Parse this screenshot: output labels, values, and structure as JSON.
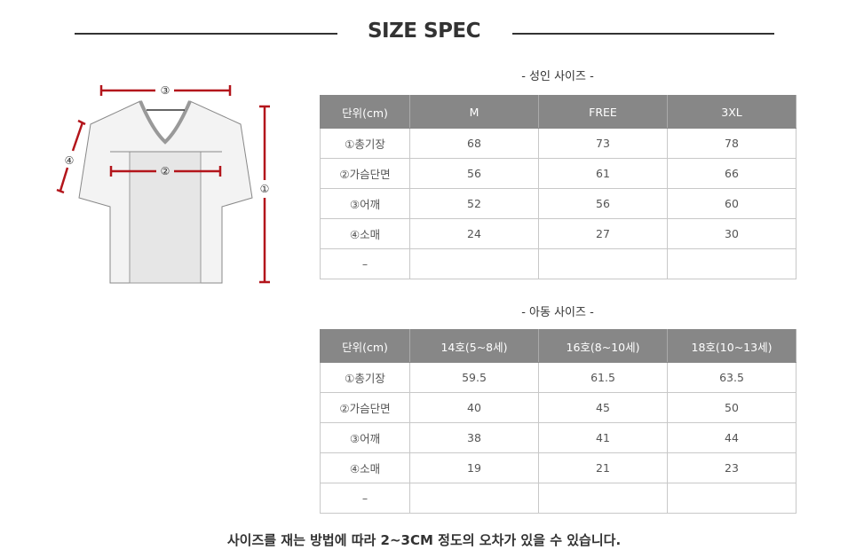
{
  "title": "SIZE SPEC",
  "adult": {
    "subtitle": "- 성인 사이즈 -",
    "headers": [
      "단위(cm)",
      "M",
      "FREE",
      "3XL"
    ],
    "rows": [
      [
        "①총기장",
        "68",
        "73",
        "78"
      ],
      [
        "②가슴단면",
        "56",
        "61",
        "66"
      ],
      [
        "③어깨",
        "52",
        "56",
        "60"
      ],
      [
        "④소매",
        "24",
        "27",
        "30"
      ],
      [
        "–",
        "",
        "",
        ""
      ]
    ]
  },
  "kids": {
    "subtitle": "- 아동 사이즈 -",
    "headers": [
      "단위(cm)",
      "14호(5~8세)",
      "16호(8~10세)",
      "18호(10~13세)"
    ],
    "rows": [
      [
        "①총기장",
        "59.5",
        "61.5",
        "63.5"
      ],
      [
        "②가슴단면",
        "40",
        "45",
        "50"
      ],
      [
        "③어깨",
        "38",
        "41",
        "44"
      ],
      [
        "④소매",
        "19",
        "21",
        "23"
      ],
      [
        "–",
        "",
        "",
        ""
      ]
    ]
  },
  "diagram": {
    "labels": [
      "①",
      "②",
      "③",
      "④"
    ],
    "accent": "#b3151b"
  },
  "footer": "사이즈를 재는 방법에 따라 2~3CM 정도의 오차가 있을 수 있습니다."
}
